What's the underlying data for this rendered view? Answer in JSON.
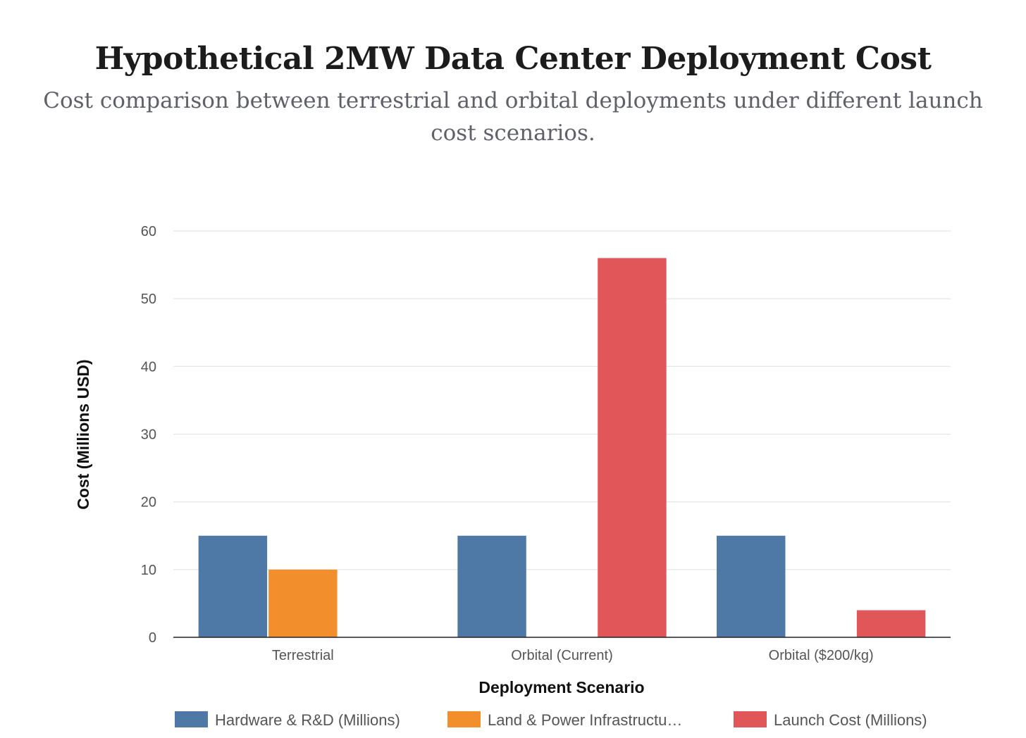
{
  "chart_data": {
    "type": "bar",
    "title": "Hypothetical 2MW Data Center Deployment Cost",
    "subtitle": "Cost comparison between terrestrial and orbital deployments under different launch cost scenarios.",
    "xlabel": "Deployment Scenario",
    "ylabel": "Cost (Millions USD)",
    "ylim": [
      0,
      60
    ],
    "yticks": [
      0,
      10,
      20,
      30,
      40,
      50,
      60
    ],
    "grid": true,
    "legend_position": "bottom",
    "categories": [
      "Terrestrial",
      "Orbital (Current)",
      "Orbital ($200/kg)"
    ],
    "series": [
      {
        "name": "Hardware & R&D (Millions)",
        "legend_label": "Hardware & R&D (Millions)",
        "color": "#4e79a7",
        "values": [
          15,
          15,
          15
        ]
      },
      {
        "name": "Land & Power Infrastructure (Millions)",
        "legend_label": "Land & Power Infrastructu…",
        "color": "#f28e2b",
        "values": [
          10,
          0,
          0
        ]
      },
      {
        "name": "Launch Cost (Millions)",
        "legend_label": "Launch Cost (Millions)",
        "color": "#e15759",
        "values": [
          0,
          56,
          4
        ]
      }
    ]
  }
}
